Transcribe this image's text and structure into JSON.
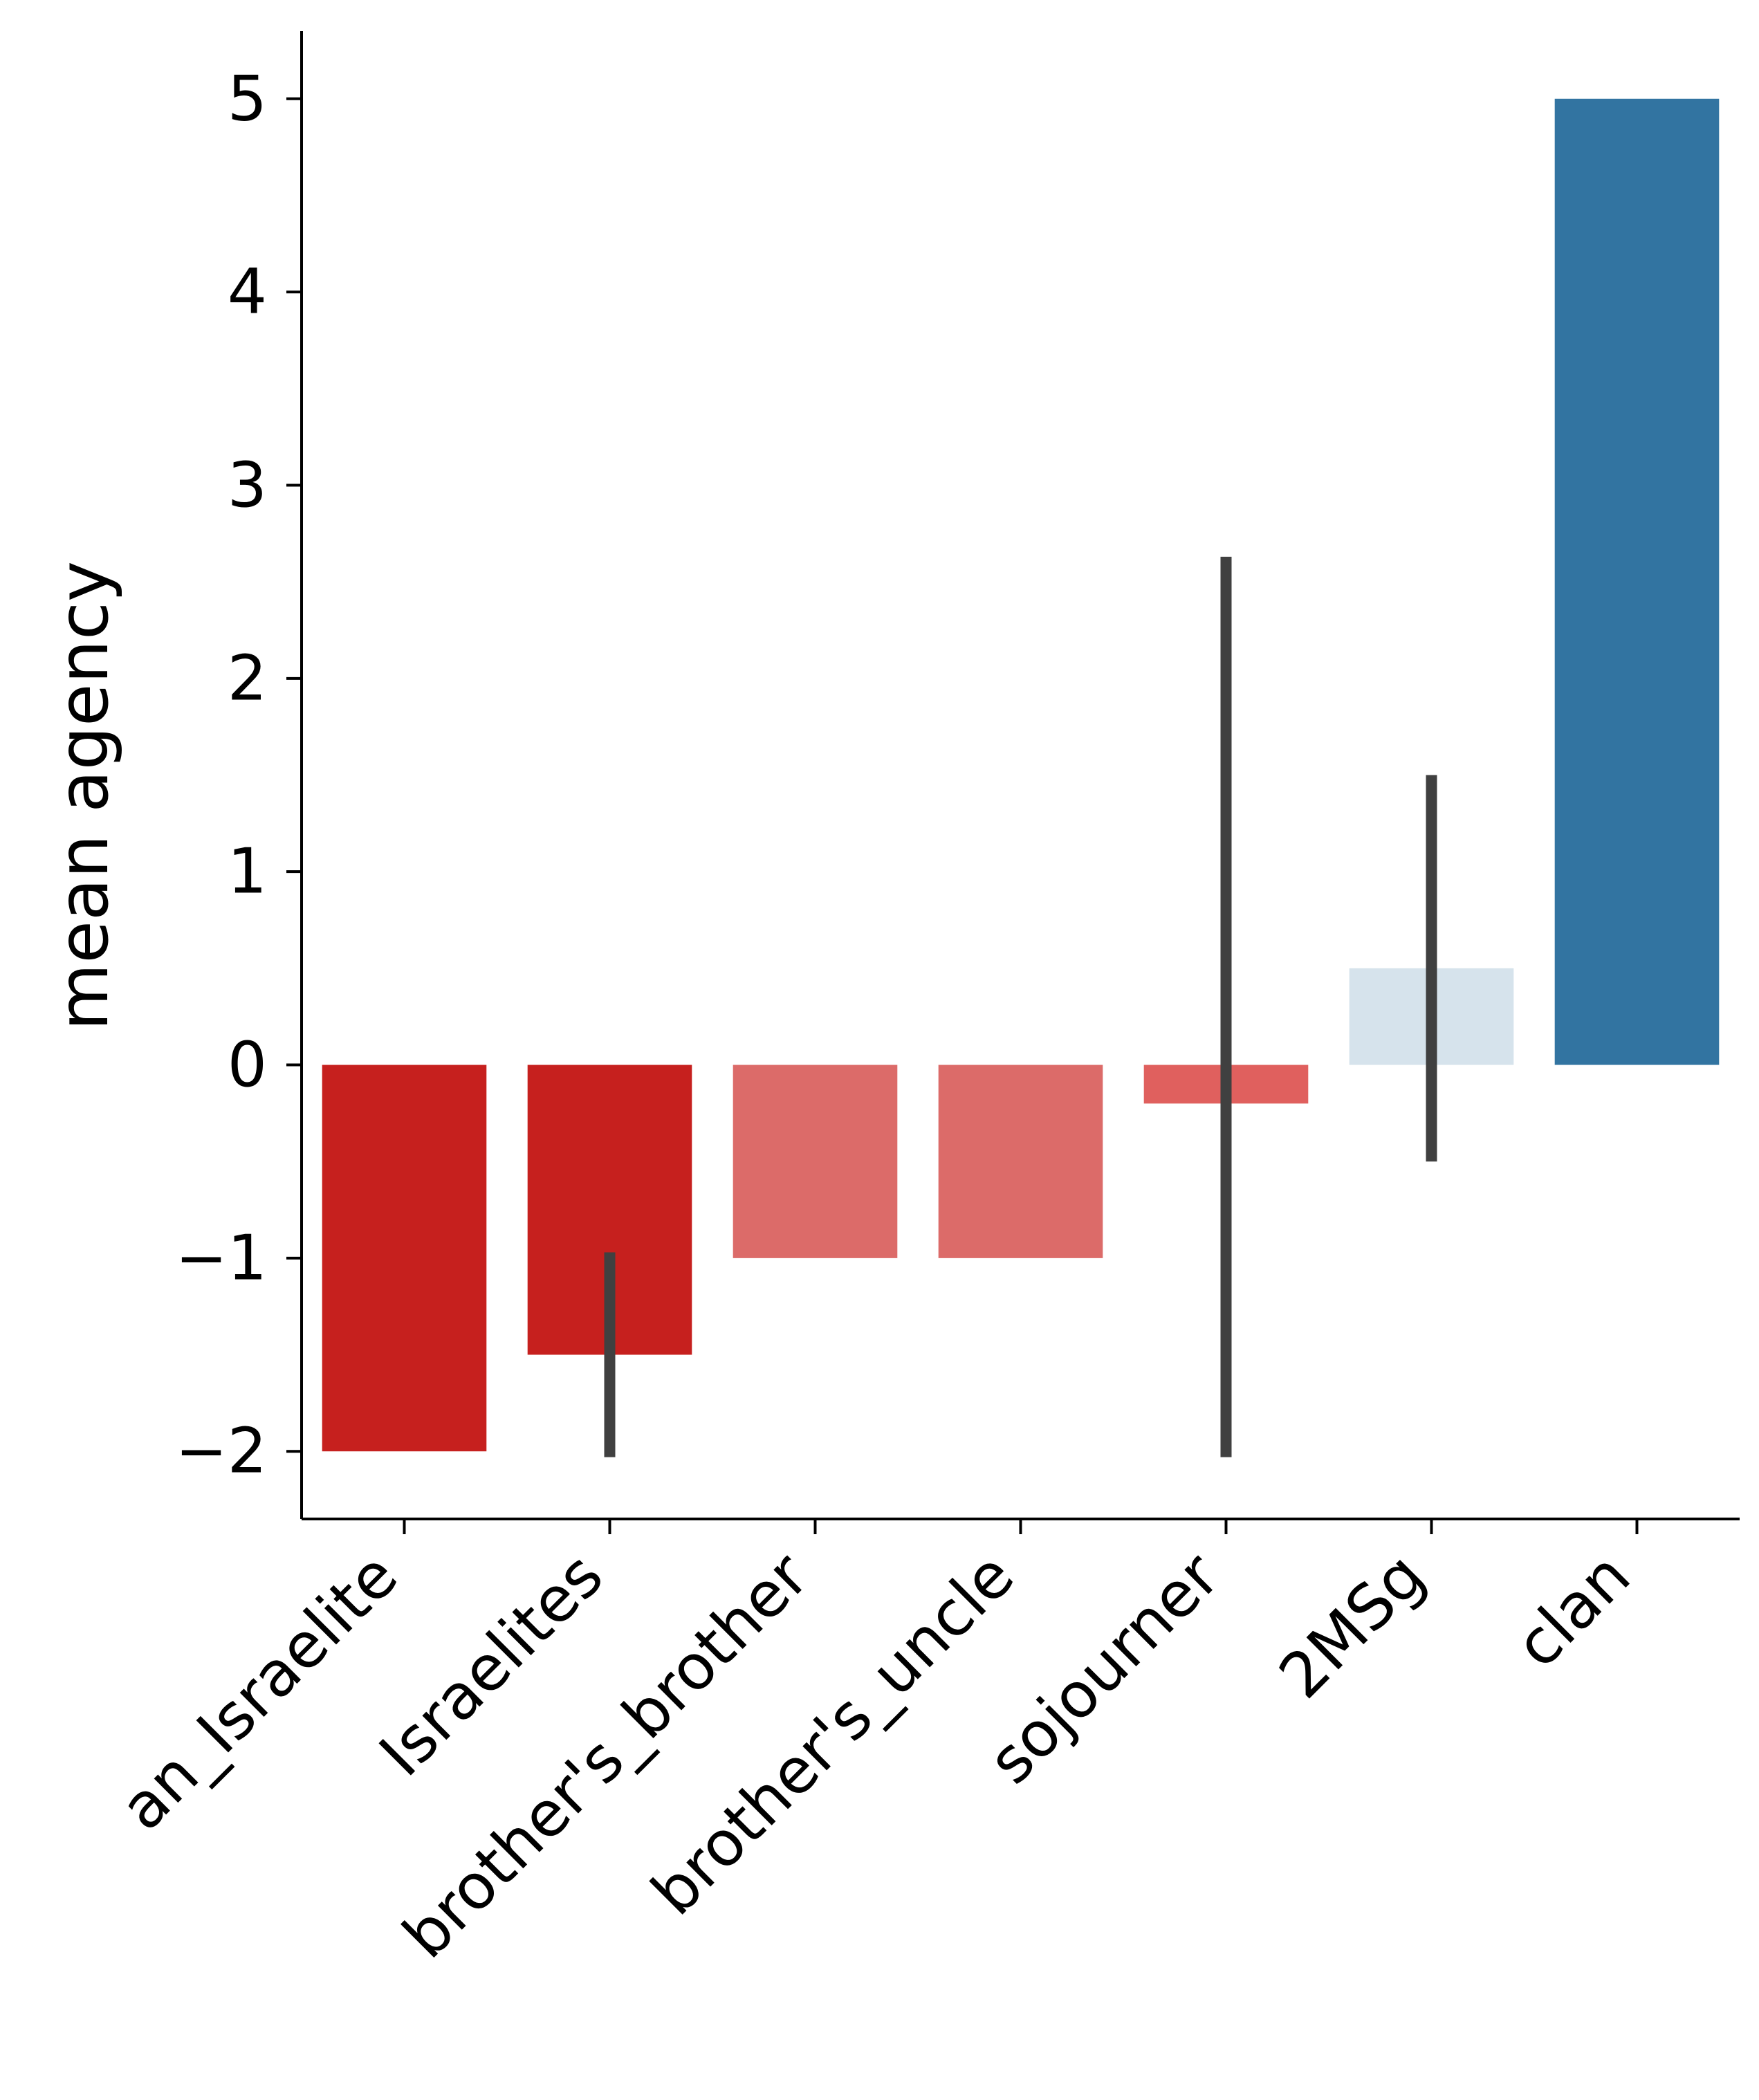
{
  "chart_data": {
    "type": "bar",
    "categories": [
      "an_Israelite",
      "Israelites",
      "brother's_brother",
      "brother's_uncle",
      "sojourner",
      "2MSg",
      "clan"
    ],
    "values": [
      -2.0,
      -1.5,
      -1.0,
      -1.0,
      -0.2,
      0.5,
      5.0
    ],
    "error_bars": [
      null,
      [
        -2.03,
        -0.97
      ],
      null,
      null,
      [
        -2.03,
        2.63
      ],
      [
        -0.5,
        1.5
      ],
      null
    ],
    "bar_colors": [
      "#c6201e",
      "#c6201e",
      "#dc6b69",
      "#dc6b69",
      "#e0605e",
      "#d6e3ec",
      "#3274a1"
    ],
    "error_bar_color": "#404040",
    "xlabel": "",
    "ylabel": "mean agency",
    "ylim": [
      -2.35,
      5.35
    ],
    "yticks": [
      -2,
      -1,
      0,
      1,
      2,
      3,
      4,
      5
    ],
    "ytick_labels": [
      "−2",
      "−1",
      "0",
      "1",
      "2",
      "3",
      "4",
      "5"
    ],
    "grid": false,
    "legend": "none"
  }
}
